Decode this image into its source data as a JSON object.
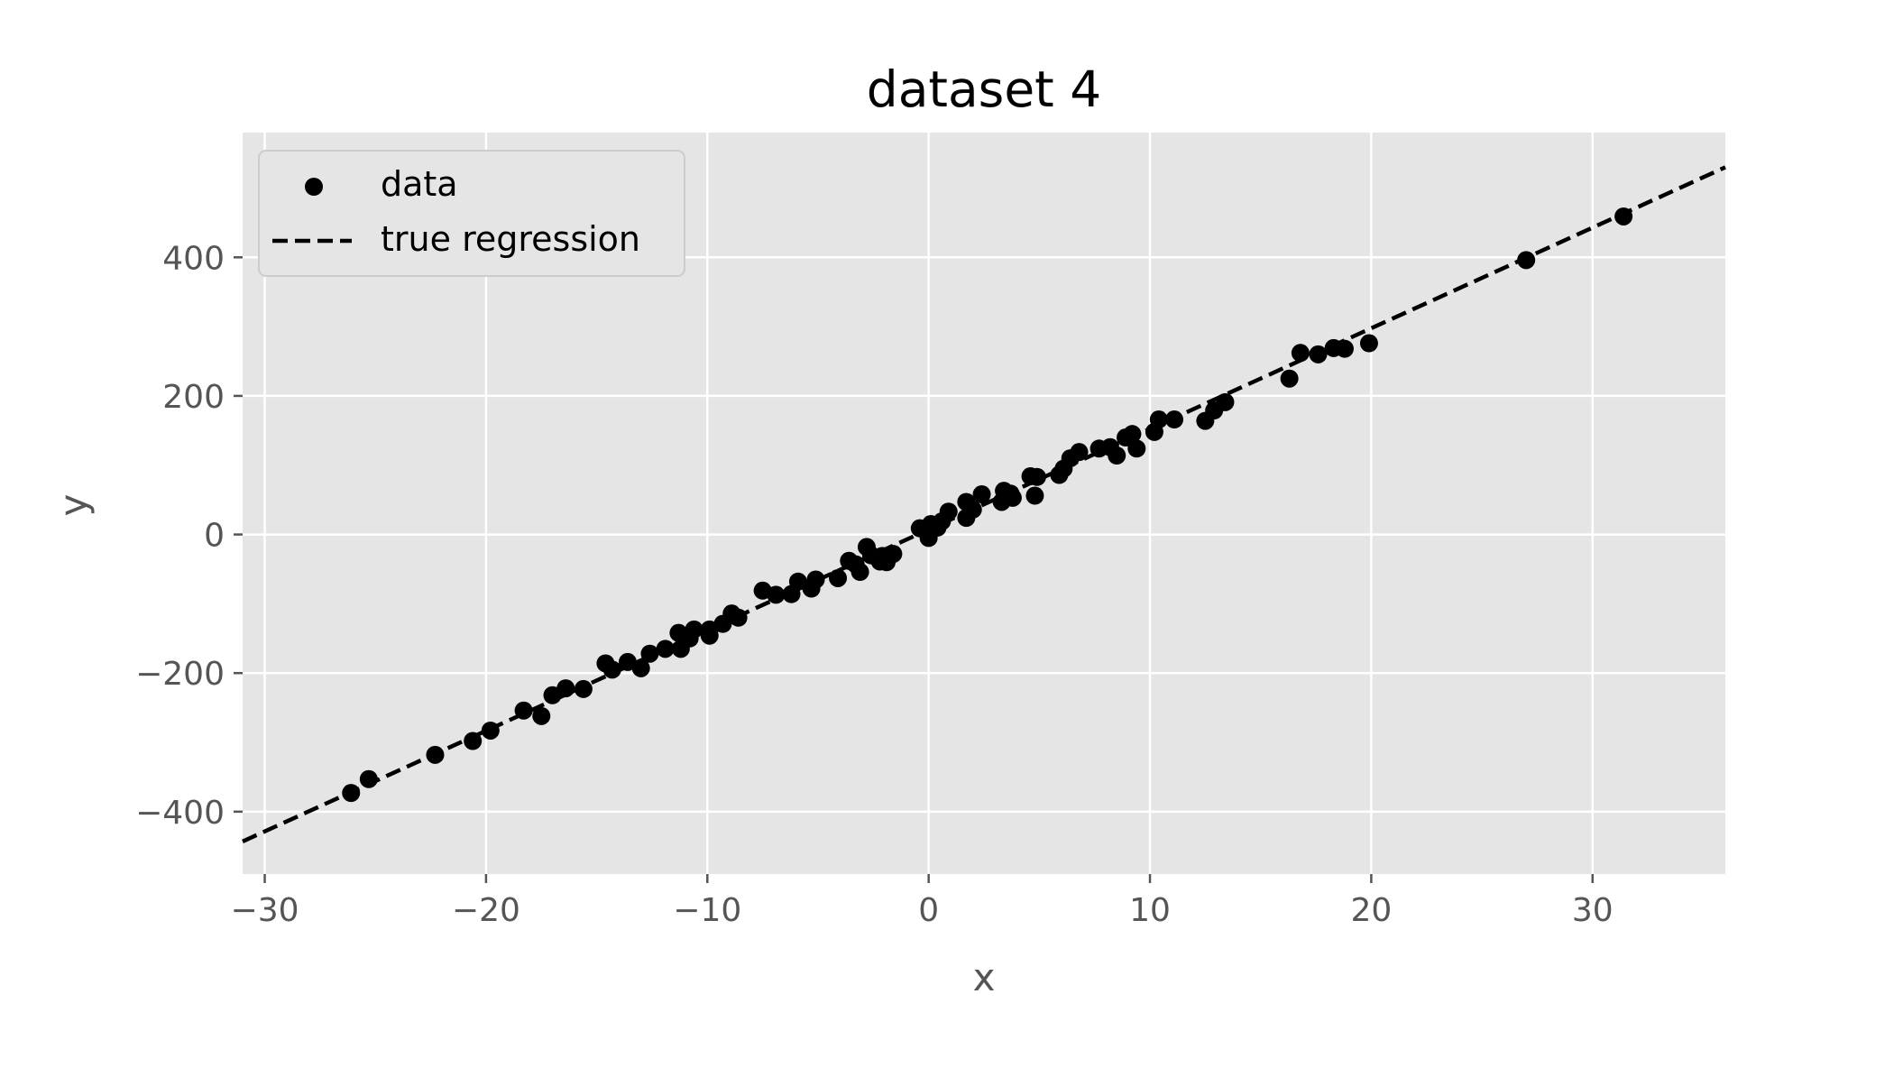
{
  "chart_data": {
    "type": "scatter",
    "title": "dataset 4",
    "xlabel": "x",
    "ylabel": "y",
    "xlim": [
      -31,
      36
    ],
    "ylim": [
      -490,
      580
    ],
    "xticks": [
      -30,
      -20,
      -10,
      0,
      10,
      20,
      30
    ],
    "yticks": [
      -400,
      -200,
      0,
      200,
      400
    ],
    "xtick_labels": [
      "−30",
      "−20",
      "−10",
      "0",
      "10",
      "20",
      "30"
    ],
    "ytick_labels": [
      "−400",
      "−200",
      "0",
      "200",
      "400"
    ],
    "grid": true,
    "legend": {
      "placement": "top-left",
      "entries": [
        "data",
        "true regression"
      ]
    },
    "colors": {
      "plot_background": "#e5e5e5",
      "grid": "#ffffff",
      "points": "#000000",
      "line": "#000000"
    },
    "series": [
      {
        "name": "data",
        "kind": "scatter",
        "points": [
          [
            -26.1,
            -373
          ],
          [
            -25.3,
            -353
          ],
          [
            -22.3,
            -318
          ],
          [
            -20.6,
            -298
          ],
          [
            -19.8,
            -283
          ],
          [
            -18.3,
            -254
          ],
          [
            -17.5,
            -262
          ],
          [
            -17.0,
            -232
          ],
          [
            -16.4,
            -222
          ],
          [
            -15.6,
            -223
          ],
          [
            -14.6,
            -186
          ],
          [
            -14.3,
            -195
          ],
          [
            -13.6,
            -184
          ],
          [
            -13.0,
            -193
          ],
          [
            -12.6,
            -172
          ],
          [
            -11.9,
            -165
          ],
          [
            -11.3,
            -142
          ],
          [
            -11.2,
            -165
          ],
          [
            -10.8,
            -150
          ],
          [
            -10.6,
            -137
          ],
          [
            -9.9,
            -146
          ],
          [
            -9.9,
            -137
          ],
          [
            -9.3,
            -129
          ],
          [
            -8.9,
            -114
          ],
          [
            -8.6,
            -120
          ],
          [
            -7.5,
            -81
          ],
          [
            -6.9,
            -87
          ],
          [
            -6.2,
            -86
          ],
          [
            -5.9,
            -68
          ],
          [
            -5.3,
            -78
          ],
          [
            -5.1,
            -65
          ],
          [
            -4.1,
            -63
          ],
          [
            -3.6,
            -38
          ],
          [
            -3.3,
            -43
          ],
          [
            -3.1,
            -54
          ],
          [
            -2.8,
            -18
          ],
          [
            -2.6,
            -30
          ],
          [
            -2.2,
            -39
          ],
          [
            -2.1,
            -31
          ],
          [
            -1.9,
            -40
          ],
          [
            -1.6,
            -28
          ],
          [
            -0.4,
            9
          ],
          [
            0.0,
            -5
          ],
          [
            0.1,
            15
          ],
          [
            0.4,
            10
          ],
          [
            0.6,
            19
          ],
          [
            0.9,
            33
          ],
          [
            1.7,
            47
          ],
          [
            1.7,
            24
          ],
          [
            2.0,
            36
          ],
          [
            2.4,
            58
          ],
          [
            3.3,
            47
          ],
          [
            3.4,
            63
          ],
          [
            3.7,
            59
          ],
          [
            3.8,
            53
          ],
          [
            4.6,
            84
          ],
          [
            4.8,
            56
          ],
          [
            4.9,
            83
          ],
          [
            5.9,
            86
          ],
          [
            6.1,
            95
          ],
          [
            6.4,
            110
          ],
          [
            6.8,
            119
          ],
          [
            7.7,
            124
          ],
          [
            8.2,
            126
          ],
          [
            8.5,
            114
          ],
          [
            8.9,
            140
          ],
          [
            9.2,
            145
          ],
          [
            9.4,
            124
          ],
          [
            10.2,
            148
          ],
          [
            10.4,
            166
          ],
          [
            11.1,
            166
          ],
          [
            12.5,
            164
          ],
          [
            12.9,
            179
          ],
          [
            13.4,
            191
          ],
          [
            16.3,
            225
          ],
          [
            16.8,
            262
          ],
          [
            17.6,
            260
          ],
          [
            18.3,
            269
          ],
          [
            18.8,
            268
          ],
          [
            19.9,
            276
          ],
          [
            27.0,
            396
          ],
          [
            31.4,
            459
          ]
        ]
      },
      {
        "name": "true regression",
        "kind": "line",
        "style": "dashed",
        "points": [
          [
            -31,
            -443
          ],
          [
            36,
            530
          ]
        ]
      }
    ]
  }
}
